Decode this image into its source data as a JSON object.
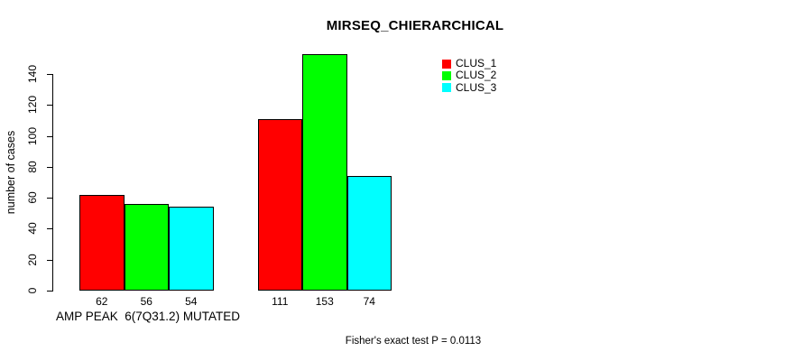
{
  "page": {
    "background": "#FFFFFF"
  },
  "chart_data": {
    "type": "bar",
    "title": "MIRSEQ_CHIERARCHICAL",
    "ylabel": "number of cases",
    "xlabel": "AMP PEAK  6(7Q31.2) MUTATED",
    "caption": "Fisher's exact test P = 0.0113",
    "ylim": [
      0,
      140
    ],
    "y_ticks": [
      0,
      20,
      40,
      60,
      80,
      100,
      120,
      140
    ],
    "grid": false,
    "axis_color": "#000000",
    "text_color": "#000000",
    "groups": [
      {
        "label": "AMP PEAK  6(7Q31.2) MUTATED",
        "values": [
          62,
          56,
          54
        ]
      },
      {
        "label": "",
        "values": [
          111,
          153,
          74
        ]
      }
    ],
    "series": [
      {
        "name": "CLUS_1",
        "color": "#FF0000",
        "values": [
          62,
          111
        ]
      },
      {
        "name": "CLUS_2",
        "color": "#00FF00",
        "values": [
          56,
          153
        ]
      },
      {
        "name": "CLUS_3",
        "color": "#00FFFF",
        "values": [
          54,
          74
        ]
      }
    ],
    "legend": {
      "position": "top-right",
      "entries": [
        "CLUS_1",
        "CLUS_2",
        "CLUS_3"
      ]
    }
  }
}
